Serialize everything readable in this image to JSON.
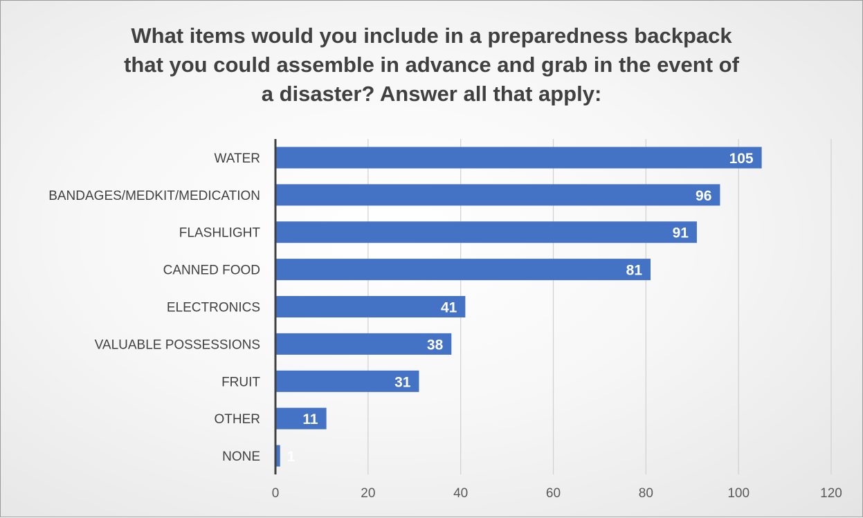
{
  "chart_data": {
    "type": "bar",
    "orientation": "horizontal",
    "title": "What items would you include in a preparedness backpack that you could assemble in advance and grab in the event of a disaster? Answer all that apply:",
    "title_lines": [
      "What items would you include in a preparedness backpack",
      "that you could assemble in advance and grab in the event of",
      "a disaster? Answer all that apply:"
    ],
    "categories": [
      "WATER",
      "BANDAGES/MEDKIT/MEDICATION",
      "FLASHLIGHT",
      "CANNED FOOD",
      "ELECTRONICS",
      "VALUABLE POSSESSIONS",
      "FRUIT",
      "OTHER",
      "NONE"
    ],
    "values": [
      105,
      96,
      91,
      81,
      41,
      38,
      31,
      11,
      1
    ],
    "xlim": [
      0,
      120
    ],
    "xticks": [
      0,
      20,
      40,
      60,
      80,
      100,
      120
    ],
    "xlabel": "",
    "ylabel": "",
    "grid": true,
    "legend": "none",
    "bar_color": "#4472c4",
    "data_labels": true
  }
}
